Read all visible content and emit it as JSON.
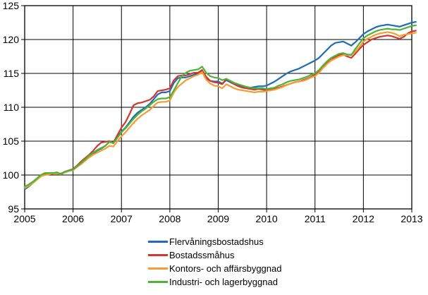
{
  "chart_data": {
    "type": "line",
    "title": "",
    "xlabel": "",
    "ylabel": "",
    "grid": true,
    "legend_position": "bottom-center",
    "x_axis": {
      "tick_labels": [
        "2005",
        "2006",
        "2007",
        "2008",
        "2009",
        "2010",
        "2011",
        "2012",
        "2013"
      ],
      "start_year": 2005,
      "end_year": 2013
    },
    "y_axis": {
      "tick_labels": [
        "95",
        "100",
        "105",
        "110",
        "115",
        "120",
        "125"
      ],
      "ticks": [
        95,
        100,
        105,
        110,
        115,
        120,
        125
      ],
      "min": 95,
      "max": 125
    },
    "x_start": "2005-01",
    "x_interval": "monthly",
    "series": [
      {
        "name": "Flervåningsbostadshus",
        "color": "#1E6CB5",
        "values": [
          97.9,
          98.3,
          98.8,
          99.3,
          99.8,
          100.1,
          100.2,
          100.3,
          100.3,
          100.2,
          100.4,
          100.6,
          100.8,
          101.3,
          101.8,
          102.3,
          102.8,
          103.2,
          103.6,
          103.9,
          104.3,
          104.9,
          104.7,
          105.6,
          106.4,
          107.0,
          107.8,
          108.6,
          109.2,
          109.6,
          110.0,
          110.5,
          111.2,
          111.9,
          112.2,
          112.2,
          112.4,
          113.6,
          114.3,
          114.4,
          114.4,
          114.6,
          114.8,
          114.9,
          115.3,
          114.3,
          113.9,
          113.8,
          113.8,
          113.5,
          114.0,
          113.7,
          113.4,
          113.2,
          113.1,
          113.0,
          112.9,
          113.0,
          113.1,
          113.1,
          113.2,
          113.5,
          113.8,
          114.2,
          114.6,
          115.0,
          115.3,
          115.5,
          115.7,
          116.0,
          116.3,
          116.6,
          116.9,
          117.3,
          117.9,
          118.5,
          119.1,
          119.5,
          119.6,
          119.7,
          119.4,
          119.1,
          119.6,
          120.2,
          120.8,
          121.2,
          121.5,
          121.8,
          122.0,
          122.1,
          122.2,
          122.1,
          122.0,
          121.9,
          122.1,
          122.3,
          122.5,
          122.6
        ]
      },
      {
        "name": "Bostadssmåhus",
        "color": "#D4352E",
        "values": [
          98.2,
          98.5,
          98.9,
          99.4,
          99.9,
          100.1,
          100.1,
          100.2,
          100.3,
          100.2,
          100.5,
          100.7,
          100.9,
          101.4,
          102.0,
          102.5,
          103.0,
          103.6,
          104.3,
          104.8,
          104.9,
          105.0,
          104.8,
          105.9,
          107.0,
          107.8,
          109.0,
          110.3,
          110.6,
          110.7,
          110.9,
          111.1,
          111.6,
          112.4,
          112.5,
          112.6,
          112.8,
          114.0,
          114.6,
          114.7,
          114.7,
          114.9,
          115.1,
          115.1,
          115.5,
          114.5,
          113.9,
          113.7,
          113.6,
          113.4,
          114.2,
          113.8,
          113.4,
          113.1,
          112.9,
          112.8,
          112.7,
          112.6,
          112.7,
          112.6,
          112.5,
          112.6,
          112.7,
          112.9,
          113.1,
          113.3,
          113.5,
          113.7,
          113.8,
          114.0,
          114.2,
          114.5,
          114.8,
          115.3,
          116.0,
          116.5,
          117.0,
          117.4,
          117.7,
          117.8,
          117.5,
          117.3,
          117.9,
          118.6,
          119.2,
          119.6,
          120.0,
          120.2,
          120.4,
          120.5,
          120.6,
          120.5,
          120.3,
          120.1,
          120.4,
          120.9,
          121.2,
          121.3
        ]
      },
      {
        "name": "Kontors- och affärsbyggnad",
        "color": "#F59C32",
        "values": [
          98.1,
          98.4,
          98.8,
          99.3,
          99.8,
          100.0,
          100.1,
          100.2,
          100.2,
          100.1,
          100.4,
          100.6,
          100.7,
          101.2,
          101.6,
          102.1,
          102.6,
          103.0,
          103.3,
          103.6,
          103.9,
          104.3,
          104.2,
          105.0,
          105.7,
          106.3,
          107.0,
          107.7,
          108.3,
          108.8,
          109.2,
          109.6,
          110.2,
          110.7,
          110.8,
          110.8,
          111.0,
          112.2,
          113.0,
          113.5,
          114.0,
          114.3,
          114.6,
          114.8,
          115.2,
          114.1,
          113.5,
          113.2,
          113.1,
          112.8,
          113.4,
          113.1,
          112.8,
          112.6,
          112.5,
          112.4,
          112.3,
          112.2,
          112.3,
          112.3,
          112.4,
          112.5,
          112.6,
          112.8,
          113.0,
          113.3,
          113.5,
          113.7,
          113.8,
          113.9,
          114.1,
          114.4,
          114.6,
          115.1,
          115.8,
          116.4,
          116.9,
          117.2,
          117.5,
          117.7,
          117.7,
          117.8,
          118.2,
          118.9,
          119.7,
          120.1,
          120.4,
          120.7,
          120.9,
          121.0,
          121.1,
          121.0,
          120.8,
          120.5,
          120.7,
          120.8,
          120.9,
          121.0
        ]
      },
      {
        "name": "Industri- och lagerbyggnad",
        "color": "#4BB439",
        "values": [
          98.3,
          98.6,
          99.0,
          99.5,
          100.0,
          100.3,
          100.3,
          100.3,
          100.4,
          100.1,
          100.5,
          100.7,
          100.8,
          101.3,
          101.8,
          102.3,
          102.9,
          103.3,
          103.7,
          104.0,
          104.3,
          104.9,
          104.7,
          105.5,
          106.3,
          106.9,
          107.6,
          108.3,
          108.9,
          109.4,
          109.8,
          110.3,
          110.8,
          111.2,
          111.3,
          111.3,
          111.5,
          112.5,
          113.6,
          114.6,
          115.1,
          115.4,
          115.5,
          115.6,
          116.0,
          115.1,
          114.6,
          114.4,
          114.3,
          114.0,
          114.2,
          113.9,
          113.6,
          113.4,
          113.2,
          113.0,
          112.9,
          112.8,
          112.8,
          112.8,
          112.7,
          112.8,
          112.9,
          113.2,
          113.4,
          113.7,
          113.9,
          114.0,
          114.1,
          114.3,
          114.5,
          114.8,
          115.0,
          115.5,
          116.2,
          116.8,
          117.3,
          117.6,
          117.9,
          118.0,
          117.8,
          117.7,
          118.6,
          119.4,
          120.2,
          120.6,
          120.9,
          121.2,
          121.4,
          121.5,
          121.6,
          121.5,
          121.5,
          121.4,
          121.6,
          121.8,
          122.0,
          122.1
        ]
      }
    ],
    "axis_color": "#000000",
    "gridline_color": "#000000"
  }
}
